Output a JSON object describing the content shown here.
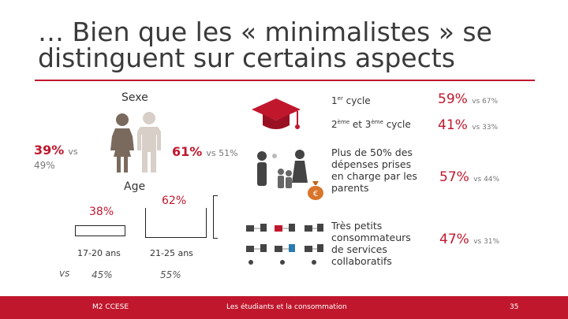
{
  "title": {
    "line1": "… Bien que les « minimalistes » se",
    "line2": "distinguent sur certains aspects"
  },
  "sexe": {
    "label": "Sexe",
    "female_pct": "39%",
    "female_vs": "vs",
    "female_cmp": "49%",
    "male_pct": "61%",
    "male_cmp": "vs 51%"
  },
  "age": {
    "label": "Age",
    "g1_pct": "38%",
    "g1_label": "17-20 ans",
    "g1_cmp": "45%",
    "g2_pct": "62%",
    "g2_label": "21-25 ans",
    "g2_cmp": "55%",
    "vs": "vs"
  },
  "cycle": {
    "c1_main": "1",
    "c1_sup": "er",
    "c1_rest": " cycle",
    "c1_pct": "59%",
    "c1_cmp": "vs 67%",
    "c2_a": "2",
    "c2_sup1": "ème",
    "c2_b": " et 3",
    "c2_sup2": "ème",
    "c2_c": " cycle",
    "c2_pct": "41%",
    "c2_cmp": "vs 33%"
  },
  "parents": {
    "line1": "Plus de 50% des",
    "line2": "dépenses prises",
    "line3": "en charge par les",
    "line4": "parents",
    "pct": "57%",
    "cmp": "vs 44%"
  },
  "conso": {
    "line1": "Très petits",
    "line2": "consommateurs",
    "line3": "de services",
    "line4": "collaboratifs",
    "pct": "47%",
    "cmp": "vs 31%"
  },
  "footer": {
    "left": "M2 CCESE",
    "center": "Les étudiants et la consommation",
    "page": "35"
  },
  "colors": {
    "accent": "#c0172d",
    "female": "#7a6a5e",
    "male": "#d7cfc8"
  },
  "icons": [
    "female-icon",
    "male-icon",
    "graduation-cap-icon",
    "family-icon",
    "money-bag-icon",
    "collaborative-network-icon"
  ]
}
